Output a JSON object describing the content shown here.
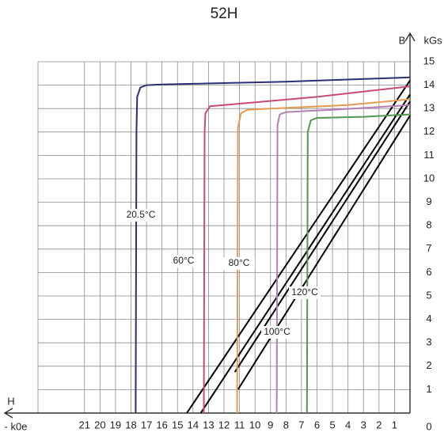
{
  "chart_data": {
    "type": "line",
    "title": "52H",
    "x_label": "H",
    "x_unit": "- k0e",
    "y_label": "B",
    "y_unit": "kGs",
    "xlim": [
      0,
      24
    ],
    "x_reversed": true,
    "ylim": [
      0,
      15
    ],
    "xticks": [
      1,
      2,
      3,
      4,
      5,
      6,
      7,
      8,
      9,
      10,
      11,
      12,
      13,
      14,
      15,
      16,
      17,
      18,
      19,
      20,
      21
    ],
    "yticks": [
      0,
      1,
      2,
      3,
      4,
      5,
      6,
      7,
      8,
      9,
      10,
      11,
      12,
      13,
      14,
      15
    ],
    "grid": true,
    "series": [
      {
        "name": "20.5°C",
        "color": "#2b2f78",
        "x": [
          17.7,
          17.65,
          17.6,
          17.4,
          17,
          16,
          8,
          0
        ],
        "values": [
          0,
          12,
          13.5,
          13.9,
          14.0,
          14.03,
          14.15,
          14.33
        ]
      },
      {
        "name": "60°C",
        "color": "#c84a7c",
        "x": [
          13.3,
          13.25,
          13.2,
          12.9,
          12,
          6,
          0
        ],
        "values": [
          0,
          12,
          12.8,
          13.1,
          13.15,
          13.5,
          13.95
        ]
      },
      {
        "name": "80°C",
        "color": "#e39a52",
        "x": [
          11.15,
          11.1,
          10.9,
          10.5,
          9,
          4,
          0
        ],
        "values": [
          0,
          12.2,
          12.8,
          12.95,
          13,
          13.15,
          13.4
        ]
      },
      {
        "name": "100°C",
        "color": "#b47db4",
        "x": [
          8.6,
          8.55,
          8.4,
          8,
          5,
          0
        ],
        "values": [
          0,
          12.3,
          12.75,
          12.85,
          12.95,
          13.15
        ]
      },
      {
        "name": "120°C",
        "color": "#4f9a4f",
        "x": [
          6.65,
          6.6,
          6.4,
          6,
          3,
          0
        ],
        "values": [
          0,
          12,
          12.5,
          12.6,
          12.65,
          12.75
        ]
      }
    ],
    "load_lines": [
      {
        "color": "#000000",
        "x": [
          14.4,
          0
        ],
        "values": [
          0,
          14.2
        ]
      },
      {
        "color": "#000000",
        "x": [
          13.5,
          0
        ],
        "values": [
          0,
          13.6
        ]
      },
      {
        "color": "#000000",
        "x": [
          11.3,
          0
        ],
        "values": [
          1.75,
          13.3
        ]
      },
      {
        "color": "#000000",
        "x": [
          11.1,
          0
        ],
        "values": [
          1.0,
          12.7
        ]
      }
    ]
  }
}
